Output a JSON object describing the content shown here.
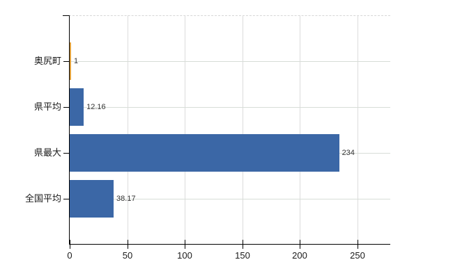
{
  "chart_data": {
    "type": "bar",
    "orientation": "horizontal",
    "title": "",
    "xlabel": "",
    "ylabel": "",
    "categories": [
      "奥尻町",
      "県平均",
      "県最大",
      "全国平均"
    ],
    "values": [
      1,
      12.16,
      234,
      38.17
    ],
    "value_labels": [
      "1",
      "12.16",
      "234",
      "38.17"
    ],
    "bar_colors": [
      "#E2A13C",
      "#3B67A6",
      "#3B67A6",
      "#3B67A6"
    ],
    "x_ticks": [
      0,
      50,
      100,
      150,
      200,
      250
    ],
    "x_tick_labels": [
      "0",
      "50",
      "100",
      "150",
      "200",
      "250"
    ],
    "xlim": [
      0,
      279
    ],
    "grid": "on",
    "legend_position": "none"
  },
  "colors": {
    "bar_blue": "#3B67A6",
    "bar_orange": "#E2A13C",
    "axis": "#000000",
    "vertical_gridline": "#dcdcdc",
    "horizontal_gridline": "#d7ddd7",
    "top_border": "#d6d6d6",
    "label_text": "#1a1a1a",
    "value_text": "#333333",
    "background": "#ffffff"
  }
}
